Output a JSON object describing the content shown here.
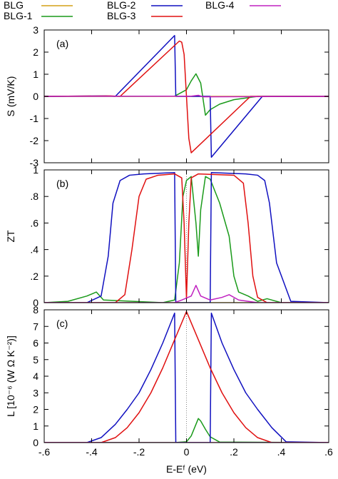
{
  "colors": {
    "BLG": "#d4a017",
    "BLG-1": "#1a9a1a",
    "BLG-2": "#1010c0",
    "BLG-3": "#e01010",
    "BLG-4": "#c020c0"
  },
  "legend": {
    "placement": "top, outside, two rows",
    "entries": [
      "BLG",
      "BLG-1",
      "BLG-2",
      "BLG-3",
      "BLG-4"
    ]
  },
  "chart_data": [
    {
      "type": "line",
      "panel_label": "(a)",
      "ylabel": "S (mV/K)",
      "xlim": [
        -0.6,
        0.6
      ],
      "ylim": [
        -3,
        3
      ],
      "yticks": [
        -3,
        -2,
        -1,
        0,
        1,
        2,
        3
      ],
      "xticks": [
        -0.6,
        -0.4,
        -0.2,
        0,
        0.2,
        0.4,
        0.6
      ],
      "grid": false,
      "series": [
        {
          "name": "BLG",
          "x": [
            -0.6,
            0.6
          ],
          "y": [
            0,
            0
          ]
        },
        {
          "name": "BLG-1",
          "x": [
            -0.6,
            -0.05,
            0.0,
            0.02,
            0.04,
            0.06,
            0.08,
            0.1,
            0.14,
            0.2,
            0.3,
            0.6
          ],
          "y": [
            0,
            0.01,
            0.3,
            0.7,
            1.02,
            0.6,
            -0.85,
            -0.6,
            -0.35,
            -0.15,
            0.0,
            0
          ]
        },
        {
          "name": "BLG-2",
          "x": [
            -0.6,
            -0.34,
            -0.3,
            -0.05,
            -0.045,
            0.1,
            0.105,
            0.32,
            0.36,
            0.6
          ],
          "y": [
            0,
            0.02,
            0.0,
            2.75,
            0.0,
            0.0,
            -2.75,
            0.0,
            0.0,
            0
          ]
        },
        {
          "name": "BLG-3",
          "x": [
            -0.6,
            -0.32,
            -0.28,
            -0.03,
            -0.02,
            -0.01,
            0.0,
            0.01,
            0.02,
            0.27,
            0.3,
            0.6
          ],
          "y": [
            0,
            0.02,
            0.0,
            2.5,
            2.45,
            1.9,
            0.0,
            -1.9,
            -2.55,
            0.0,
            0.0,
            0
          ]
        },
        {
          "name": "BLG-4",
          "x": [
            -0.6,
            0.02,
            0.05,
            0.07,
            0.6
          ],
          "y": [
            0,
            0.01,
            0.05,
            -0.02,
            0
          ]
        }
      ]
    },
    {
      "type": "line",
      "panel_label": "(b)",
      "ylabel": "ZT",
      "xlim": [
        -0.6,
        0.6
      ],
      "ylim": [
        0,
        1
      ],
      "yticks": [
        0,
        0.2,
        0.4,
        0.6,
        0.8,
        1
      ],
      "xticks": [
        -0.6,
        -0.4,
        -0.2,
        0,
        0.2,
        0.4,
        0.6
      ],
      "grid": false,
      "series": [
        {
          "name": "BLG",
          "x": [
            -0.6,
            0.6
          ],
          "y": [
            0,
            0
          ]
        },
        {
          "name": "BLG-1",
          "x": [
            -0.6,
            -0.5,
            -0.42,
            -0.38,
            -0.35,
            -0.1,
            -0.05,
            -0.03,
            -0.015,
            0.0,
            0.02,
            0.04,
            0.05,
            0.06,
            0.08,
            0.1,
            0.14,
            0.18,
            0.2,
            0.22,
            0.26,
            0.3,
            0.34,
            0.4,
            0.6
          ],
          "y": [
            0,
            0.01,
            0.05,
            0.08,
            0.02,
            0.0,
            0.02,
            0.3,
            0.8,
            0.92,
            0.95,
            0.6,
            0.35,
            0.7,
            0.95,
            0.93,
            0.75,
            0.5,
            0.2,
            0.08,
            0.05,
            0.01,
            0.03,
            0.0,
            0
          ]
        },
        {
          "name": "BLG-2",
          "x": [
            -0.6,
            -0.42,
            -0.36,
            -0.33,
            -0.31,
            -0.28,
            -0.24,
            -0.18,
            -0.05,
            -0.045,
            0.1,
            0.105,
            0.25,
            0.3,
            0.33,
            0.35,
            0.38,
            0.44,
            0.6
          ],
          "y": [
            0,
            0.0,
            0.05,
            0.35,
            0.75,
            0.92,
            0.96,
            0.97,
            0.98,
            0.0,
            0.0,
            0.98,
            0.97,
            0.96,
            0.92,
            0.75,
            0.3,
            0.01,
            0
          ]
        },
        {
          "name": "BLG-3",
          "x": [
            -0.6,
            -0.3,
            -0.26,
            -0.23,
            -0.2,
            -0.17,
            -0.12,
            -0.05,
            -0.02,
            -0.01,
            0.0,
            0.01,
            0.02,
            0.05,
            0.2,
            0.24,
            0.26,
            0.28,
            0.3,
            0.34,
            0.6
          ],
          "y": [
            0,
            0.0,
            0.06,
            0.4,
            0.8,
            0.93,
            0.96,
            0.97,
            0.94,
            0.6,
            0.03,
            0.6,
            0.94,
            0.97,
            0.96,
            0.9,
            0.6,
            0.2,
            0.04,
            0.0,
            0
          ]
        },
        {
          "name": "BLG-4",
          "x": [
            -0.6,
            -0.05,
            -0.02,
            0.02,
            0.04,
            0.06,
            0.1,
            0.15,
            0.18,
            0.22,
            0.3,
            0.6
          ],
          "y": [
            0,
            0.0,
            0.02,
            0.05,
            0.13,
            0.05,
            0.02,
            0.04,
            0.06,
            0.02,
            0.0,
            0
          ]
        }
      ]
    },
    {
      "type": "line",
      "panel_label": "(c)",
      "ylabel": "L [10⁻⁶ (W Ω K⁻²)]",
      "xlabel": "E-Eᶠ (eV)",
      "xlim": [
        -0.6,
        0.6
      ],
      "ylim": [
        0,
        8
      ],
      "yticks": [
        0,
        1,
        2,
        3,
        4,
        5,
        6,
        7,
        8
      ],
      "xticks": [
        -0.6,
        -0.4,
        -0.2,
        0,
        0.2,
        0.4,
        0.6
      ],
      "grid": false,
      "series": [
        {
          "name": "BLG",
          "x": [
            -0.6,
            0.6
          ],
          "y": [
            0,
            0
          ]
        },
        {
          "name": "BLG-1",
          "x": [
            -0.6,
            -0.05,
            0.0,
            0.02,
            0.04,
            0.05,
            0.06,
            0.08,
            0.1,
            0.14,
            0.6
          ],
          "y": [
            0,
            0.0,
            0.05,
            0.4,
            1.1,
            1.45,
            1.3,
            0.8,
            0.35,
            0.03,
            0
          ]
        },
        {
          "name": "BLG-2",
          "x": [
            -0.6,
            -0.42,
            -0.36,
            -0.3,
            -0.25,
            -0.2,
            -0.15,
            -0.1,
            -0.05,
            -0.045,
            0.1,
            0.105,
            0.15,
            0.2,
            0.25,
            0.3,
            0.36,
            0.42,
            0.6
          ],
          "y": [
            0,
            0.0,
            0.3,
            1.1,
            2.0,
            3.0,
            4.4,
            6.0,
            7.8,
            0.0,
            0.0,
            7.8,
            6.0,
            4.4,
            3.0,
            2.0,
            0.9,
            0.05,
            0
          ]
        },
        {
          "name": "BLG-3",
          "x": [
            -0.6,
            -0.36,
            -0.3,
            -0.25,
            -0.2,
            -0.15,
            -0.1,
            -0.05,
            0.0,
            0.05,
            0.1,
            0.15,
            0.2,
            0.25,
            0.3,
            0.36,
            0.6
          ],
          "y": [
            0,
            0.0,
            0.3,
            0.9,
            1.8,
            3.0,
            4.5,
            6.2,
            7.9,
            6.2,
            4.5,
            3.0,
            1.8,
            0.9,
            0.3,
            0.0,
            0
          ]
        },
        {
          "name": "BLG-4",
          "x": [
            -0.6,
            0.6
          ],
          "y": [
            0,
            0
          ]
        }
      ]
    }
  ]
}
